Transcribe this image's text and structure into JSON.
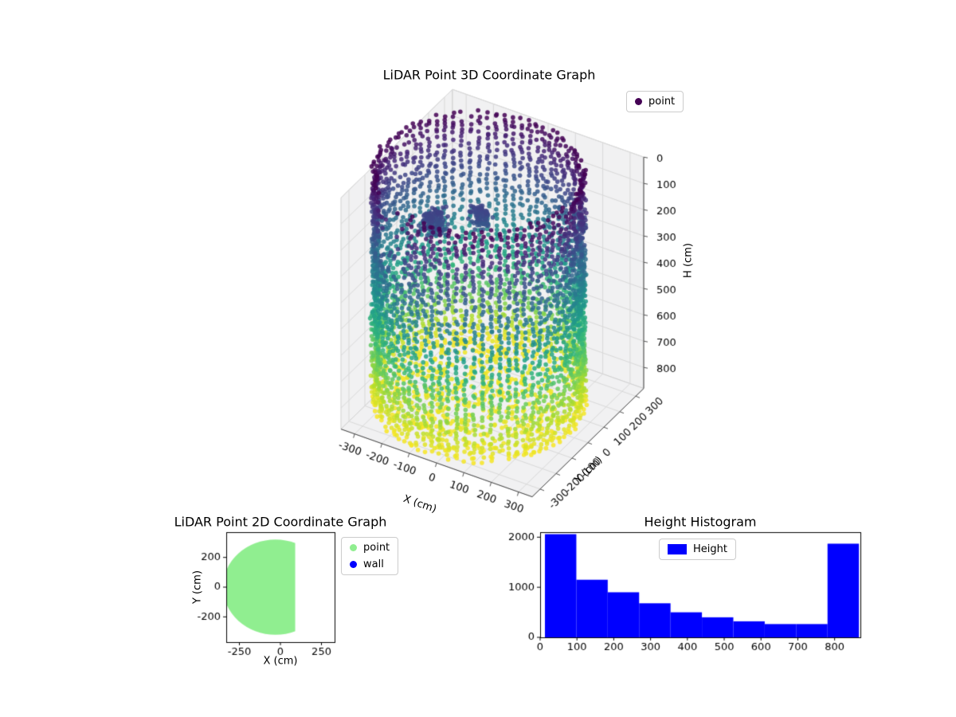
{
  "figure": {
    "background": "#ffffff"
  },
  "chart_data": [
    {
      "id": "lidar-3d",
      "type": "scatter",
      "projection": "3d",
      "title": "LiDAR Point 3D Coordinate Graph",
      "xlabel": "X (cm)",
      "ylabel": "Y (cm)",
      "zlabel": "H (cm)",
      "xlim": [
        -350,
        350
      ],
      "ylim": [
        -350,
        350
      ],
      "zlim": [
        0,
        880
      ],
      "z_axis_inverted": true,
      "xticks": [
        -300,
        -200,
        -100,
        0,
        100,
        200,
        300
      ],
      "yticks": [
        -300,
        -200,
        -100,
        0,
        100,
        200,
        300
      ],
      "zticks": [
        0,
        100,
        200,
        300,
        400,
        500,
        600,
        700,
        800
      ],
      "grid": true,
      "legend": {
        "position": "upper right",
        "entries": [
          {
            "label": "point",
            "marker": "dot",
            "color": "#440154"
          }
        ]
      },
      "colormap": "viridis",
      "colormap_stops": [
        "#440154",
        "#482878",
        "#3e4989",
        "#31688e",
        "#26828e",
        "#1f9e89",
        "#35b779",
        "#6ece58",
        "#b5de2b",
        "#fde725"
      ],
      "point_cloud": {
        "shape": "open-top cylinder wall with floor disc, colored by height",
        "center_xy": [
          -50,
          0
        ],
        "radius_cm": 330,
        "radius_jitter_cm": 9,
        "height_range_cm": [
          0,
          880
        ],
        "wall_columns": 75,
        "column_height_step_cm": 15,
        "dropout": 0.12,
        "sparse_gap": {
          "angle_deg": [
            225,
            255
          ],
          "below_height_cm": 260,
          "keep": 0.25
        },
        "floor_points": {
          "count": 550,
          "height_cm": [
            840,
            880
          ]
        },
        "interior_clusters": [
          {
            "center_xy": [
              -190,
              -40
            ],
            "spread_cm": 55,
            "height_cm": [
              170,
              260
            ],
            "count": 150
          },
          {
            "center_xy": [
              -80,
              60
            ],
            "spread_cm": 45,
            "height_cm": [
              180,
              250
            ],
            "count": 90
          }
        ],
        "color_by": "height"
      }
    },
    {
      "id": "lidar-2d",
      "type": "scatter",
      "title": "LiDAR Point 2D Coordinate Graph",
      "xlabel": "X (cm)",
      "ylabel": "Y (cm)",
      "xlim": [
        -330,
        330
      ],
      "ylim": [
        -370,
        370
      ],
      "xticks": [
        -250,
        0,
        250
      ],
      "yticks": [
        -200,
        0,
        200
      ],
      "legend": {
        "position": "outside upper right",
        "entries": [
          {
            "label": "point",
            "marker": "dot",
            "color": "#90EE90"
          },
          {
            "label": "wall",
            "marker": "dot",
            "color": "#0000FF"
          }
        ]
      },
      "region": {
        "shape": "disc clipped flat on right side",
        "center_xy": [
          -30,
          0
        ],
        "radius_cm": 320,
        "clip_x_max_cm": 90,
        "fill_color": "#90EE90"
      }
    },
    {
      "id": "height-histogram",
      "type": "bar",
      "title": "Height Histogram",
      "xlim": [
        0,
        870
      ],
      "ylim": [
        0,
        2100
      ],
      "xticks": [
        0,
        100,
        200,
        300,
        400,
        500,
        600,
        700,
        800
      ],
      "yticks": [
        0,
        1000,
        2000
      ],
      "legend": {
        "position": "upper center",
        "entries": [
          {
            "label": "Height",
            "marker": "rect",
            "color": "#0000FF"
          }
        ]
      },
      "bar_color": "#0000FF",
      "bins": {
        "start_cm": 13,
        "width_cm": 85.3
      },
      "counts": [
        2060,
        1150,
        900,
        680,
        500,
        400,
        320,
        265,
        265,
        1870
      ]
    }
  ]
}
